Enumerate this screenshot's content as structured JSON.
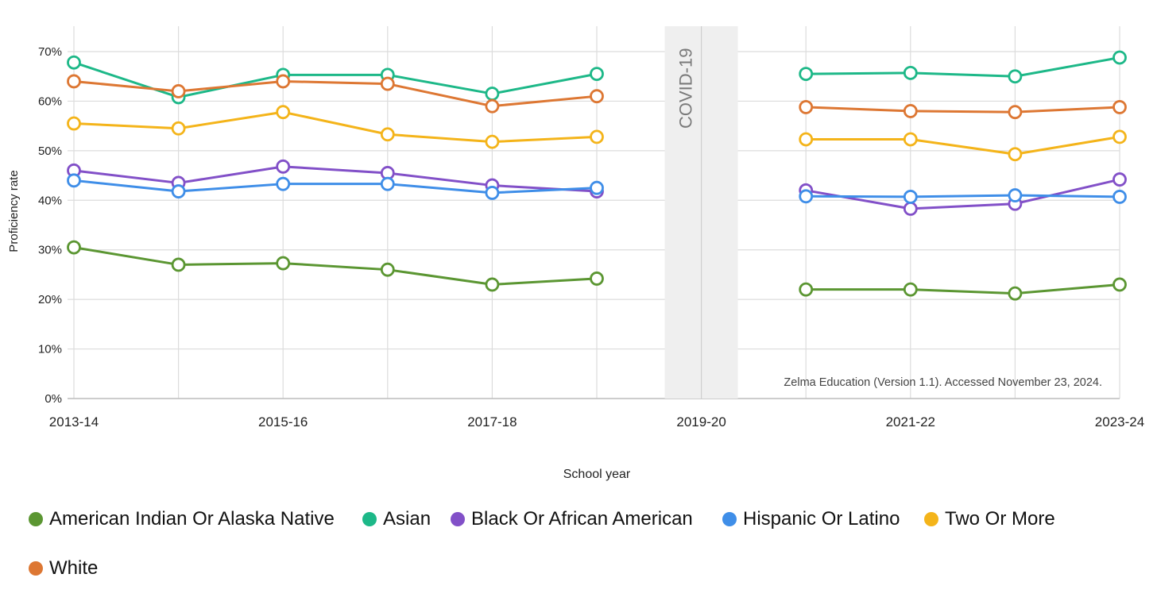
{
  "chart_data": {
    "type": "line",
    "xlabel": "School year",
    "ylabel": "Proficiency rate",
    "x": [
      "2013-14",
      "2014-15",
      "2015-16",
      "2016-17",
      "2017-18",
      "2018-19",
      "2019-20",
      "2020-21",
      "2021-22",
      "2022-23",
      "2023-24"
    ],
    "x_tick_labels": [
      "2013-14",
      "2015-16",
      "2017-18",
      "2019-20",
      "2021-22",
      "2023-24"
    ],
    "y_ticks": [
      "0%",
      "10%",
      "20%",
      "30%",
      "40%",
      "50%",
      "60%",
      "70%"
    ],
    "ylim": [
      0,
      75
    ],
    "grid": true,
    "annotation": "COVID-19",
    "annotation_x": "2019-20",
    "source_note": "Zelma Education (Version 1.1). Accessed November 23, 2024.",
    "legend_position": "bottom",
    "series": [
      {
        "name": "American Indian Or Alaska Native",
        "color": "#5b9632",
        "values": [
          30.5,
          27.0,
          27.3,
          26.0,
          23.0,
          24.2,
          null,
          22.0,
          22.0,
          21.2,
          23.0
        ]
      },
      {
        "name": "Asian",
        "color": "#1db888",
        "values": [
          67.8,
          60.8,
          65.3,
          65.3,
          61.5,
          65.5,
          null,
          65.5,
          65.7,
          65.0,
          68.8
        ]
      },
      {
        "name": "Black Or African American",
        "color": "#8250c8",
        "values": [
          46.0,
          43.5,
          46.8,
          45.5,
          43.0,
          41.8,
          null,
          42.0,
          38.3,
          39.3,
          44.2
        ]
      },
      {
        "name": "Hispanic Or Latino",
        "color": "#3f8ee8",
        "values": [
          44.0,
          41.8,
          43.3,
          43.3,
          41.5,
          42.5,
          null,
          40.8,
          40.7,
          41.0,
          40.7
        ]
      },
      {
        "name": "Two Or More",
        "color": "#f4b41a",
        "values": [
          55.5,
          54.5,
          57.8,
          53.3,
          51.8,
          52.8,
          null,
          52.3,
          52.3,
          49.3,
          52.8
        ]
      },
      {
        "name": "White",
        "color": "#dd7733",
        "values": [
          64.0,
          62.0,
          64.0,
          63.5,
          59.0,
          61.0,
          null,
          58.8,
          58.0,
          57.8,
          58.8
        ]
      }
    ]
  }
}
